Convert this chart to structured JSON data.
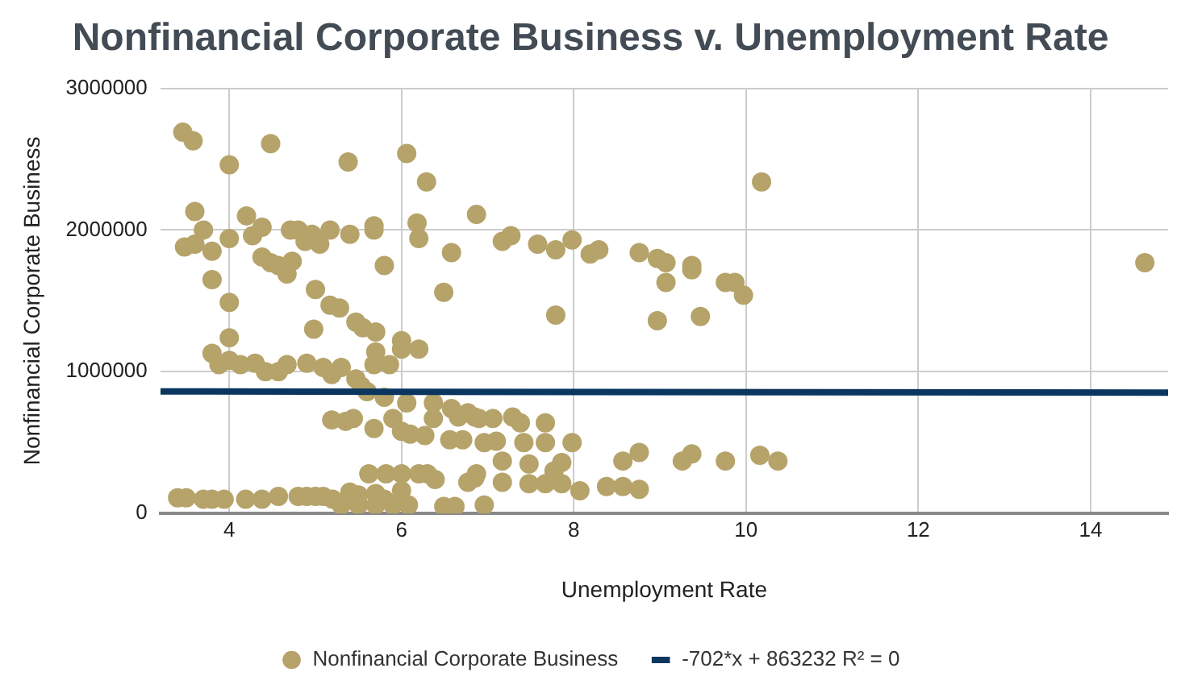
{
  "chart_data": {
    "type": "scatter",
    "title": "Nonfinancial Corporate Business v. Unemployment Rate",
    "xlabel": "Unemployment Rate",
    "ylabel": "Nonfinancial Corporate Business",
    "xlim": [
      3.2,
      14.9
    ],
    "xticks": [
      4,
      6,
      8,
      10,
      12,
      14
    ],
    "ylim": [
      0,
      3000000
    ],
    "yticks": [
      0,
      1000000,
      2000000,
      3000000
    ],
    "grid": true,
    "legend": "bottom",
    "series": [
      {
        "name": "Nonfinancial Corporate Business",
        "color": "#b5a36a",
        "type": "scatter",
        "marker": "circle",
        "x": [
          3.46,
          3.58,
          4.0,
          4.48,
          5.38,
          6.06,
          6.29,
          10.18,
          14.63,
          3.6,
          3.7,
          3.48,
          3.6,
          3.8,
          4.0,
          4.2,
          4.27,
          4.38,
          4.38,
          4.48,
          4.57,
          4.67,
          4.73,
          4.71,
          4.8,
          4.88,
          4.96,
          5.05,
          5.17,
          5.4,
          5.68,
          5.68,
          5.8,
          6.18,
          6.2,
          6.58,
          6.87,
          7.17,
          7.27,
          7.58,
          7.79,
          7.98,
          8.19,
          8.29,
          8.76,
          8.97,
          9.07,
          9.07,
          9.37,
          9.37,
          9.76,
          9.87,
          9.97,
          7.79,
          8.97,
          9.47,
          3.8,
          4.0,
          5.0,
          4.98,
          5.17,
          5.28,
          5.47,
          5.55,
          5.7,
          6.49,
          3.8,
          3.88,
          4.0,
          4.0,
          4.13,
          4.3,
          4.42,
          4.57,
          4.67,
          4.9,
          5.09,
          5.19,
          5.3,
          5.47,
          5.53,
          5.6,
          5.68,
          5.7,
          5.8,
          5.86,
          6.0,
          6.0,
          6.2,
          5.19,
          5.35,
          5.44,
          5.68,
          5.9,
          6.06,
          6.37,
          6.37,
          6.58,
          6.66,
          6.77,
          6.9,
          6.0,
          6.1,
          6.27,
          6.56,
          6.71,
          6.85,
          7.06,
          7.29,
          7.38,
          7.67,
          6.96,
          7.1,
          7.42,
          7.67,
          7.98,
          7.17,
          7.48,
          7.77,
          7.86,
          6.85,
          7.17,
          7.48,
          7.67,
          7.86,
          8.07,
          8.38,
          8.57,
          8.76,
          8.57,
          8.76,
          9.26,
          9.37,
          9.76,
          10.16,
          10.37,
          6.96,
          3.4,
          3.5,
          3.7,
          3.8,
          3.94,
          4.19,
          4.38,
          4.57,
          4.8,
          4.9,
          5.0,
          5.09,
          5.3,
          5.5,
          5.7,
          5.9,
          5.2,
          5.5,
          5.62,
          5.82,
          6.0,
          6.2,
          6.3,
          6.39,
          6.77,
          6.87,
          6.49,
          6.62,
          6.0,
          6.08,
          5.4,
          5.7,
          5.8
        ],
        "values": [
          2690000,
          2630000,
          2460000,
          2610000,
          2480000,
          2540000,
          2340000,
          2340000,
          1770000,
          2130000,
          2000000,
          1880000,
          1900000,
          1850000,
          1940000,
          2100000,
          1960000,
          2020000,
          1810000,
          1770000,
          1750000,
          1690000,
          1780000,
          2000000,
          2000000,
          1920000,
          1970000,
          1900000,
          2000000,
          1970000,
          2030000,
          2000000,
          1750000,
          2050000,
          1940000,
          1840000,
          2110000,
          1920000,
          1960000,
          1900000,
          1860000,
          1930000,
          1830000,
          1860000,
          1840000,
          1800000,
          1770000,
          1630000,
          1750000,
          1720000,
          1630000,
          1630000,
          1540000,
          1400000,
          1360000,
          1390000,
          1650000,
          1490000,
          1580000,
          1300000,
          1470000,
          1450000,
          1350000,
          1310000,
          1280000,
          1560000,
          1130000,
          1050000,
          1240000,
          1080000,
          1050000,
          1060000,
          1000000,
          1000000,
          1050000,
          1060000,
          1030000,
          980000,
          1030000,
          950000,
          900000,
          860000,
          1050000,
          1140000,
          820000,
          1050000,
          1220000,
          1160000,
          1160000,
          660000,
          650000,
          670000,
          600000,
          670000,
          780000,
          780000,
          670000,
          740000,
          680000,
          710000,
          670000,
          580000,
          560000,
          550000,
          520000,
          520000,
          680000,
          670000,
          680000,
          640000,
          640000,
          500000,
          510000,
          500000,
          500000,
          500000,
          370000,
          350000,
          300000,
          360000,
          250000,
          220000,
          210000,
          210000,
          210000,
          160000,
          190000,
          190000,
          170000,
          370000,
          430000,
          370000,
          420000,
          370000,
          410000,
          370000,
          60000,
          110000,
          110000,
          100000,
          100000,
          100000,
          100000,
          100000,
          120000,
          120000,
          120000,
          120000,
          120000,
          60000,
          60000,
          60000,
          60000,
          100000,
          130000,
          280000,
          280000,
          280000,
          280000,
          280000,
          240000,
          220000,
          280000,
          50000,
          50000,
          160000,
          60000,
          150000,
          140000,
          100000
        ]
      },
      {
        "name": "-702*x + 863232 R² = 0",
        "color": "#0b3660",
        "type": "line",
        "marker": "none",
        "x": [
          3.2,
          14.9
        ],
        "values": [
          861000,
          853000
        ]
      }
    ]
  }
}
